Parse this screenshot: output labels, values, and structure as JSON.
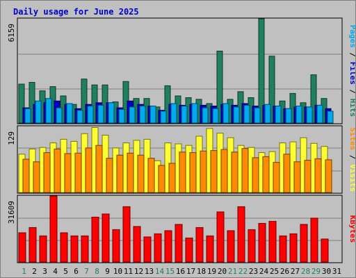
{
  "chart_data": {
    "type": "bar",
    "title": "Daily usage for June 2025",
    "categories": [
      "1",
      "2",
      "3",
      "4",
      "5",
      "6",
      "7",
      "8",
      "9",
      "10",
      "11",
      "12",
      "13",
      "14",
      "15",
      "16",
      "17",
      "18",
      "19",
      "20",
      "21",
      "22",
      "23",
      "24",
      "25",
      "26",
      "27",
      "28",
      "29",
      "30",
      "31"
    ],
    "weekend_days": [
      "1",
      "7",
      "8",
      "14",
      "15",
      "21",
      "22",
      "28",
      "29"
    ],
    "panels": [
      {
        "id": "hits-files-pages",
        "max_label": "6159",
        "ylim": [
          0,
          6159
        ],
        "axis_labels": [
          "Pages",
          "Files",
          "Hits"
        ],
        "series": [
          {
            "name": "Hits",
            "color": "#1f7f5f",
            "values": [
              2300,
              2400,
              1900,
              2150,
              1600,
              1100,
              2600,
              2250,
              2250,
              1250,
              2450,
              1450,
              1450,
              950,
              2200,
              1600,
              1500,
              1400,
              1150,
              4250,
              1400,
              1850,
              1500,
              6159,
              3950,
              1300,
              1750,
              1200,
              2850,
              1450,
              0
            ]
          },
          {
            "name": "Files",
            "color": "#0000cc",
            "values": [
              900,
              1100,
              1200,
              1300,
              1100,
              850,
              1100,
              1200,
              1200,
              900,
              1300,
              1100,
              1000,
              750,
              1100,
              1050,
              1100,
              1050,
              1000,
              1100,
              1050,
              1150,
              1000,
              1050,
              1000,
              850,
              950,
              950,
              1050,
              850,
              0
            ]
          },
          {
            "name": "Pages",
            "color": "#00aaee",
            "values": [
              850,
              1300,
              1450,
              900,
              1150,
              750,
              1000,
              1050,
              1200,
              800,
              950,
              1000,
              1000,
              700,
              1150,
              1000,
              1150,
              900,
              850,
              1150,
              950,
              1050,
              900,
              1100,
              1000,
              850,
              1000,
              950,
              1050,
              700,
              0
            ]
          }
        ]
      },
      {
        "id": "visits-sites",
        "max_label": "129",
        "ylim": [
          0,
          129
        ],
        "axis_labels": [
          "Sites",
          "Visits"
        ],
        "series": [
          {
            "name": "Visits",
            "color": "#ffff33",
            "values": [
              75,
              85,
              88,
              97,
              104,
              100,
              115,
              127,
              112,
              87,
              97,
              102,
              104,
              62,
              97,
              95,
              92,
              110,
              125,
              116,
              107,
              92,
              88,
              78,
              80,
              97,
              99,
              107,
              96,
              90,
              0
            ]
          },
          {
            "name": "Sites",
            "color": "#ff8c00",
            "values": [
              65,
              60,
              78,
              85,
              76,
              77,
              87,
              92,
              67,
              73,
              77,
              73,
              67,
              53,
              57,
              79,
              78,
              81,
              82,
              84,
              79,
              86,
              68,
              70,
              59,
              75,
              60,
              63,
              66,
              64,
              0
            ]
          }
        ]
      },
      {
        "id": "kbytes",
        "max_label": "31609",
        "ylim": [
          0,
          31609
        ],
        "axis_labels": [
          "KBytes"
        ],
        "series": [
          {
            "name": "KBytes",
            "color": "#ff0000",
            "values": [
              14000,
              16500,
              12500,
              31609,
              14000,
              12500,
              12500,
              21500,
              23000,
              15500,
              26500,
              17000,
              12000,
              13500,
              15000,
              18000,
              11500,
              16500,
              12500,
              24000,
              15000,
              26500,
              15500,
              18500,
              19500,
              12500,
              13500,
              18000,
              21000,
              11000,
              0
            ]
          }
        ]
      }
    ]
  }
}
